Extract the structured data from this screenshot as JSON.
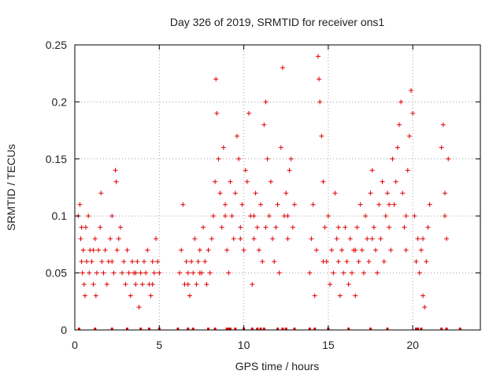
{
  "chart_data": {
    "type": "scatter",
    "title": "Day 326 of 2019, SRMTID for receiver ons1",
    "xlabel": "GPS time / hours",
    "ylabel": "SRMTID / TECUs",
    "xlim": [
      0,
      24
    ],
    "ylim": [
      0,
      0.25
    ],
    "xticks": [
      0,
      5,
      10,
      15,
      20
    ],
    "xtick_labels": [
      "0",
      "5",
      "10",
      "15",
      "20"
    ],
    "yticks": [
      0,
      0.05,
      0.1,
      0.15,
      0.2,
      0.25
    ],
    "ytick_labels": [
      "0",
      "0.05",
      "0.1",
      "0.15",
      "0.2",
      "0.25"
    ],
    "grid": true,
    "marker": "+",
    "color": "#e00000",
    "points": [
      [
        0.2,
        0.1
      ],
      [
        0.3,
        0.11
      ],
      [
        0.35,
        0.08
      ],
      [
        0.4,
        0.06
      ],
      [
        0.45,
        0.05
      ],
      [
        0.5,
        0.07
      ],
      [
        0.55,
        0.04
      ],
      [
        0.6,
        0.03
      ],
      [
        0.65,
        0.09
      ],
      [
        0.7,
        0.06
      ],
      [
        0.8,
        0.1
      ],
      [
        0.85,
        0.05
      ],
      [
        0.9,
        0.07
      ],
      [
        1.0,
        0.06
      ],
      [
        1.1,
        0.04
      ],
      [
        1.2,
        0.08
      ],
      [
        1.25,
        0.03
      ],
      [
        1.3,
        0.05
      ],
      [
        1.4,
        0.07
      ],
      [
        1.5,
        0.09
      ],
      [
        1.55,
        0.12
      ],
      [
        1.6,
        0.06
      ],
      [
        1.7,
        0.05
      ],
      [
        1.8,
        0.07
      ],
      [
        1.9,
        0.04
      ],
      [
        2.0,
        0.06
      ],
      [
        2.1,
        0.08
      ],
      [
        2.2,
        0.1
      ],
      [
        2.3,
        0.05
      ],
      [
        2.4,
        0.14
      ],
      [
        2.45,
        0.13
      ],
      [
        2.5,
        0.07
      ],
      [
        2.6,
        0.08
      ],
      [
        2.7,
        0.09
      ],
      [
        2.8,
        0.05
      ],
      [
        2.9,
        0.06
      ],
      [
        3.0,
        0.04
      ],
      [
        3.1,
        0.07
      ],
      [
        3.2,
        0.05
      ],
      [
        3.3,
        0.03
      ],
      [
        3.4,
        0.06
      ],
      [
        3.5,
        0.05
      ],
      [
        3.6,
        0.04
      ],
      [
        3.7,
        0.06
      ],
      [
        3.8,
        0.02
      ],
      [
        3.9,
        0.05
      ],
      [
        4.0,
        0.04
      ],
      [
        4.1,
        0.06
      ],
      [
        4.2,
        0.05
      ],
      [
        4.3,
        0.07
      ],
      [
        4.4,
        0.04
      ],
      [
        4.5,
        0.03
      ],
      [
        4.6,
        0.06
      ],
      [
        4.7,
        0.05
      ],
      [
        4.8,
        0.08
      ],
      [
        4.9,
        0.06
      ],
      [
        5.0,
        0.05
      ],
      [
        6.2,
        0.05
      ],
      [
        6.3,
        0.07
      ],
      [
        6.4,
        0.11
      ],
      [
        6.5,
        0.04
      ],
      [
        6.6,
        0.06
      ],
      [
        6.7,
        0.05
      ],
      [
        6.8,
        0.03
      ],
      [
        6.9,
        0.06
      ],
      [
        7.0,
        0.05
      ],
      [
        7.1,
        0.08
      ],
      [
        7.2,
        0.04
      ],
      [
        7.3,
        0.06
      ],
      [
        7.4,
        0.07
      ],
      [
        7.5,
        0.05
      ],
      [
        7.6,
        0.09
      ],
      [
        7.7,
        0.06
      ],
      [
        7.8,
        0.04
      ],
      [
        7.9,
        0.07
      ],
      [
        8.0,
        0.05
      ],
      [
        8.1,
        0.08
      ],
      [
        8.2,
        0.1
      ],
      [
        8.3,
        0.13
      ],
      [
        8.35,
        0.22
      ],
      [
        8.4,
        0.19
      ],
      [
        8.5,
        0.15
      ],
      [
        8.6,
        0.12
      ],
      [
        8.7,
        0.09
      ],
      [
        8.8,
        0.16
      ],
      [
        8.9,
        0.11
      ],
      [
        9.0,
        0.07
      ],
      [
        9.1,
        0.05
      ],
      [
        9.2,
        0.13
      ],
      [
        9.3,
        0.1
      ],
      [
        9.4,
        0.08
      ],
      [
        9.5,
        0.12
      ],
      [
        9.6,
        0.17
      ],
      [
        9.7,
        0.15
      ],
      [
        9.8,
        0.09
      ],
      [
        9.9,
        0.11
      ],
      [
        10.0,
        0.07
      ],
      [
        10.1,
        0.14
      ],
      [
        10.2,
        0.13
      ],
      [
        10.3,
        0.19
      ],
      [
        10.4,
        0.1
      ],
      [
        10.5,
        0.04
      ],
      [
        10.6,
        0.08
      ],
      [
        10.7,
        0.12
      ],
      [
        10.8,
        0.09
      ],
      [
        10.9,
        0.07
      ],
      [
        11.0,
        0.11
      ],
      [
        11.1,
        0.06
      ],
      [
        11.2,
        0.18
      ],
      [
        11.3,
        0.2
      ],
      [
        11.4,
        0.15
      ],
      [
        11.5,
        0.1
      ],
      [
        11.6,
        0.13
      ],
      [
        11.7,
        0.08
      ],
      [
        11.8,
        0.06
      ],
      [
        11.9,
        0.09
      ],
      [
        12.0,
        0.11
      ],
      [
        12.1,
        0.05
      ],
      [
        12.2,
        0.16
      ],
      [
        12.3,
        0.23
      ],
      [
        12.4,
        0.1
      ],
      [
        12.5,
        0.12
      ],
      [
        12.6,
        0.08
      ],
      [
        12.7,
        0.14
      ],
      [
        12.8,
        0.15
      ],
      [
        12.9,
        0.09
      ],
      [
        13.0,
        0.11
      ],
      [
        13.9,
        0.05
      ],
      [
        14.0,
        0.08
      ],
      [
        14.1,
        0.11
      ],
      [
        14.2,
        0.03
      ],
      [
        14.3,
        0.07
      ],
      [
        14.4,
        0.24
      ],
      [
        14.45,
        0.22
      ],
      [
        14.5,
        0.2
      ],
      [
        14.6,
        0.17
      ],
      [
        14.7,
        0.13
      ],
      [
        14.8,
        0.09
      ],
      [
        14.9,
        0.06
      ],
      [
        15.0,
        0.1
      ],
      [
        15.1,
        0.04
      ],
      [
        15.2,
        0.07
      ],
      [
        15.3,
        0.05
      ],
      [
        15.4,
        0.12
      ],
      [
        15.5,
        0.08
      ],
      [
        15.6,
        0.06
      ],
      [
        15.7,
        0.03
      ],
      [
        15.8,
        0.07
      ],
      [
        15.9,
        0.05
      ],
      [
        16.0,
        0.09
      ],
      [
        16.1,
        0.06
      ],
      [
        16.2,
        0.04
      ],
      [
        16.3,
        0.08
      ],
      [
        16.4,
        0.05
      ],
      [
        16.5,
        0.07
      ],
      [
        16.6,
        0.03
      ],
      [
        16.7,
        0.09
      ],
      [
        16.8,
        0.06
      ],
      [
        16.9,
        0.11
      ],
      [
        17.0,
        0.07
      ],
      [
        17.1,
        0.05
      ],
      [
        17.2,
        0.1
      ],
      [
        17.3,
        0.08
      ],
      [
        17.4,
        0.06
      ],
      [
        17.5,
        0.12
      ],
      [
        17.6,
        0.14
      ],
      [
        17.7,
        0.09
      ],
      [
        17.8,
        0.07
      ],
      [
        17.9,
        0.05
      ],
      [
        18.0,
        0.11
      ],
      [
        18.1,
        0.08
      ],
      [
        18.2,
        0.13
      ],
      [
        18.3,
        0.06
      ],
      [
        18.4,
        0.1
      ],
      [
        18.5,
        0.12
      ],
      [
        18.6,
        0.09
      ],
      [
        18.7,
        0.07
      ],
      [
        18.8,
        0.15
      ],
      [
        18.9,
        0.11
      ],
      [
        19.0,
        0.13
      ],
      [
        19.1,
        0.16
      ],
      [
        19.2,
        0.18
      ],
      [
        19.3,
        0.2
      ],
      [
        19.4,
        0.12
      ],
      [
        19.5,
        0.09
      ],
      [
        19.6,
        0.07
      ],
      [
        19.7,
        0.14
      ],
      [
        19.8,
        0.17
      ],
      [
        19.9,
        0.21
      ],
      [
        20.0,
        0.19
      ],
      [
        20.1,
        0.1
      ],
      [
        20.2,
        0.06
      ],
      [
        20.3,
        0.08
      ],
      [
        20.4,
        0.05
      ],
      [
        20.5,
        0.07
      ],
      [
        20.6,
        0.03
      ],
      [
        20.7,
        0.02
      ],
      [
        20.8,
        0.06
      ],
      [
        20.9,
        0.09
      ],
      [
        21.0,
        0.11
      ],
      [
        21.7,
        0.16
      ],
      [
        21.8,
        0.18
      ],
      [
        21.9,
        0.12
      ],
      [
        22.0,
        0.08
      ],
      [
        22.1,
        0.15
      ],
      [
        0.4,
        0.09
      ],
      [
        1.1,
        0.07
      ],
      [
        2.2,
        0.06
      ],
      [
        3.6,
        0.05
      ],
      [
        4.6,
        0.04
      ],
      [
        6.7,
        0.04
      ],
      [
        7.4,
        0.05
      ],
      [
        8.9,
        0.1
      ],
      [
        9.8,
        0.08
      ],
      [
        10.6,
        0.1
      ],
      [
        11.3,
        0.09
      ],
      [
        12.6,
        0.1
      ],
      [
        14.7,
        0.06
      ],
      [
        15.6,
        0.09
      ],
      [
        16.6,
        0.07
      ],
      [
        17.6,
        0.08
      ],
      [
        18.6,
        0.11
      ],
      [
        19.6,
        0.1
      ],
      [
        20.6,
        0.08
      ],
      [
        21.9,
        0.1
      ]
    ],
    "zero_points": [
      0.25,
      1.2,
      2.2,
      3.1,
      3.9,
      4.4,
      5.0,
      6.1,
      6.7,
      7.0,
      7.9,
      8.3,
      9.0,
      9.1,
      9.2,
      9.5,
      10.0,
      10.5,
      10.8,
      11.0,
      11.2,
      12.0,
      12.3,
      12.5,
      13.0,
      13.9,
      14.2,
      15.0,
      16.2,
      17.5,
      18.5,
      20.2,
      20.3,
      20.5,
      21.7,
      22.0,
      22.8
    ]
  }
}
